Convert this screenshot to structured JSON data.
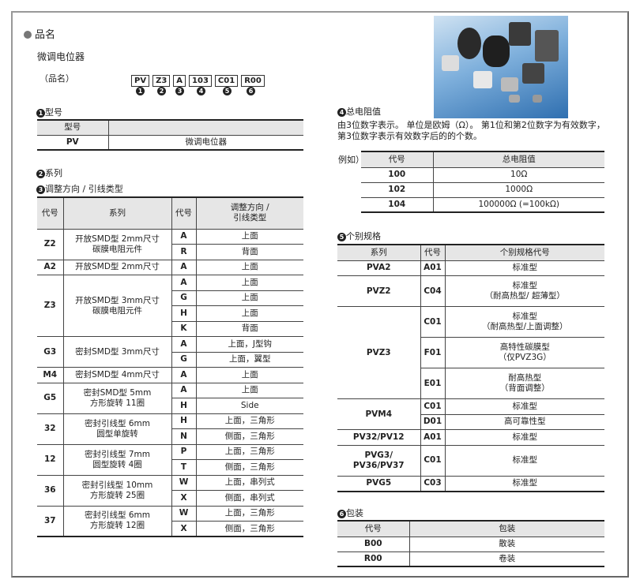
{
  "heading": "品名",
  "subtitle": "微调电位器",
  "pn_label": "（品名）",
  "pn_codes": [
    "PV",
    "Z3",
    "A",
    "103",
    "C01",
    "R00"
  ],
  "pn_numbers": [
    "1",
    "2",
    "3",
    "4",
    "5",
    "6"
  ],
  "sec1": {
    "title": "型号",
    "num": "1",
    "headers": [
      "型号",
      ""
    ],
    "rows": [
      [
        "PV",
        "微调电位器"
      ]
    ]
  },
  "sec2": {
    "title": "系列",
    "num": "2"
  },
  "sec3": {
    "title": "调整方向 / 引线类型",
    "num": "3",
    "headers": [
      "代号",
      "系列",
      "代号",
      "调整方向 /\n引线类型"
    ],
    "groups": [
      {
        "code": "Z2",
        "series": "开放SMD型 2mm尺寸\n碳膜电阻元件",
        "items": [
          [
            "A",
            "上面"
          ],
          [
            "R",
            "背面"
          ]
        ]
      },
      {
        "code": "A2",
        "series": "开放SMD型 2mm尺寸",
        "items": [
          [
            "A",
            "上面"
          ]
        ]
      },
      {
        "code": "Z3",
        "series": "开放SMD型 3mm尺寸\n碳膜电阻元件",
        "items": [
          [
            "A",
            "上面"
          ],
          [
            "G",
            "上面"
          ],
          [
            "H",
            "上面"
          ],
          [
            "K",
            "背面"
          ]
        ]
      },
      {
        "code": "G3",
        "series": "密封SMD型 3mm尺寸",
        "items": [
          [
            "A",
            "上面，J型钩"
          ],
          [
            "G",
            "上面，翼型"
          ]
        ]
      },
      {
        "code": "M4",
        "series": "密封SMD型 4mm尺寸",
        "items": [
          [
            "A",
            "上面"
          ]
        ]
      },
      {
        "code": "G5",
        "series": "密封SMD型 5mm\n方形旋转 11圈",
        "items": [
          [
            "A",
            "上面"
          ],
          [
            "H",
            "Side"
          ]
        ]
      },
      {
        "code": "32",
        "series": "密封引线型 6mm\n圆型单旋转",
        "items": [
          [
            "H",
            "上面，三角形"
          ],
          [
            "N",
            "侧面，三角形"
          ]
        ]
      },
      {
        "code": "12",
        "series": "密封引线型 7mm\n圆型旋转 4圈",
        "items": [
          [
            "P",
            "上面，三角形"
          ],
          [
            "T",
            "侧面，三角形"
          ]
        ]
      },
      {
        "code": "36",
        "series": "密封引线型 10mm\n方形旋转 25圈",
        "items": [
          [
            "W",
            "上面，串列式"
          ],
          [
            "X",
            "侧面，串列式"
          ]
        ]
      },
      {
        "code": "37",
        "series": "密封引线型 6mm\n方形旋转 12圈",
        "items": [
          [
            "W",
            "上面，三角形"
          ],
          [
            "X",
            "侧面，三角形"
          ]
        ]
      }
    ]
  },
  "sec4": {
    "title": "总电阻值",
    "num": "4",
    "desc": "由3位数字表示。 单位是欧姆（Ω）。 第1位和第2位数字为有效数字，第3位数字表示有效数字后的的个数。",
    "example": "例如）",
    "headers": [
      "代号",
      "总电阻值"
    ],
    "rows": [
      [
        "100",
        "10Ω"
      ],
      [
        "102",
        "1000Ω"
      ],
      [
        "104",
        "100000Ω (=100kΩ)"
      ]
    ]
  },
  "sec5": {
    "title": "个别规格",
    "num": "5",
    "headers": [
      "系列",
      "代号",
      "个别规格代号"
    ],
    "groups": [
      {
        "series": "PVA2",
        "items": [
          [
            "A01",
            "标准型"
          ]
        ]
      },
      {
        "series": "PVZ2",
        "items": [
          [
            "C04",
            "标准型\n（耐高热型/ 超薄型）"
          ]
        ]
      },
      {
        "series": "PVZ3",
        "items": [
          [
            "C01",
            "标准型\n（耐高热型/上面调整）"
          ],
          [
            "F01",
            "高特性碳膜型\n（仅PVZ3G）"
          ],
          [
            "E01",
            "耐高热型\n（背面调整）"
          ]
        ]
      },
      {
        "series": "PVM4",
        "items": [
          [
            "C01",
            "标准型"
          ],
          [
            "D01",
            "高可靠性型"
          ]
        ]
      },
      {
        "series": "PV32/PV12",
        "items": [
          [
            "A01",
            "标准型"
          ]
        ]
      },
      {
        "series": "PVG3/\nPV36/PV37",
        "items": [
          [
            "C01",
            "标准型"
          ]
        ]
      },
      {
        "series": "PVG5",
        "items": [
          [
            "C03",
            "标准型"
          ]
        ]
      }
    ]
  },
  "sec6": {
    "title": "包装",
    "num": "6",
    "headers": [
      "代号",
      "包装"
    ],
    "rows": [
      [
        "B00",
        "散装"
      ],
      [
        "R00",
        "卷装"
      ]
    ]
  }
}
